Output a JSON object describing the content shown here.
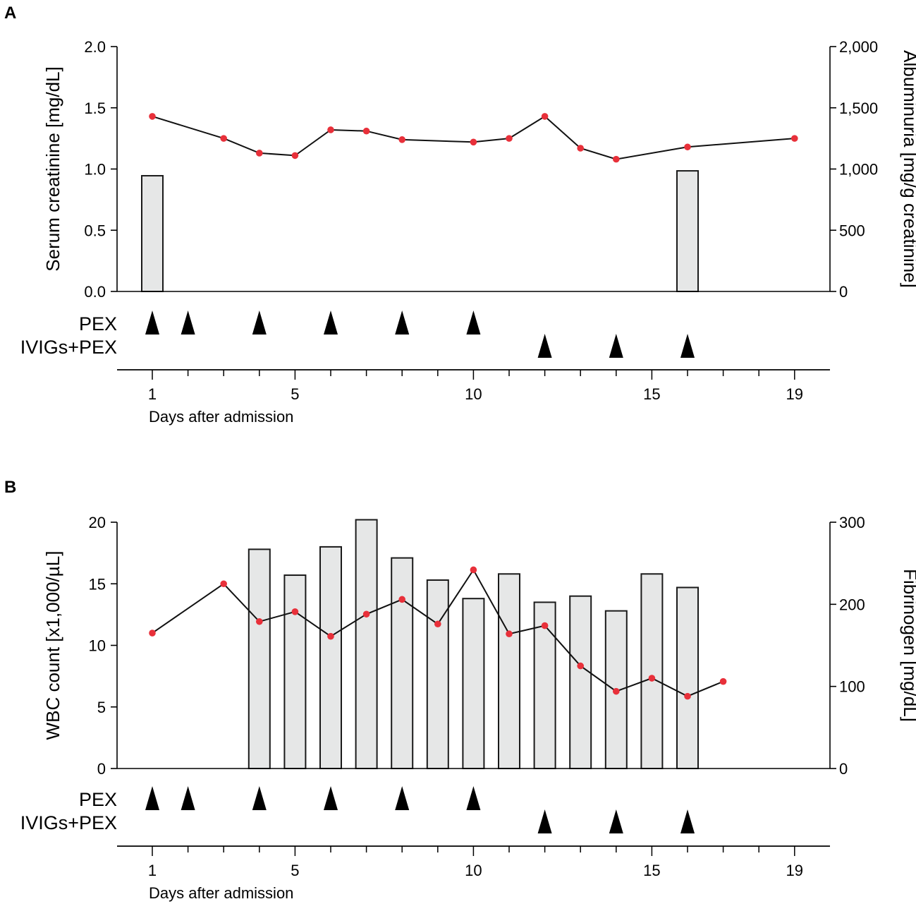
{
  "chart_data": [
    {
      "panel_label": "A",
      "type": "bar+line",
      "xlabel": "Days after admission",
      "x_ticks": [
        "1",
        "5",
        "10",
        "15",
        "19"
      ],
      "x_range": [
        1,
        19
      ],
      "left_axis": {
        "label": "Serum creatinine [mg/dL]",
        "range": [
          0,
          2.0
        ],
        "ticks": [
          "0.0",
          "0.5",
          "1.0",
          "1.5",
          "2.0"
        ],
        "tick_values": [
          0,
          0.5,
          1.0,
          1.5,
          2.0
        ]
      },
      "right_axis": {
        "label": "Albuminuria [mg/g creatinine]",
        "range": [
          0,
          2000
        ],
        "ticks": [
          "0",
          "500",
          "1,000",
          "1,500",
          "2,000"
        ],
        "tick_values": [
          0,
          500,
          1000,
          1500,
          2000
        ]
      },
      "bars": {
        "axis": "right",
        "name": "Albuminuria",
        "x": [
          1,
          16
        ],
        "values": [
          945,
          985
        ]
      },
      "line": {
        "axis": "left",
        "name": "Serum creatinine",
        "color": "#e8303a",
        "x": [
          1,
          3,
          4,
          5,
          6,
          7,
          8,
          10,
          11,
          12,
          13,
          14,
          16,
          19
        ],
        "values": [
          1.43,
          1.25,
          1.13,
          1.11,
          1.32,
          1.31,
          1.24,
          1.22,
          1.25,
          1.43,
          1.17,
          1.08,
          1.18,
          1.25
        ]
      },
      "treatments": [
        {
          "label": "PEX",
          "days": [
            1,
            2,
            4,
            6,
            8,
            10
          ]
        },
        {
          "label": "IVIGs+PEX",
          "days": [
            12,
            14,
            16
          ]
        }
      ]
    },
    {
      "panel_label": "B",
      "type": "bar+line",
      "xlabel": "Days after admission",
      "x_ticks": [
        "1",
        "5",
        "10",
        "15",
        "19"
      ],
      "x_range": [
        1,
        19
      ],
      "left_axis": {
        "label": "WBC count [x1,000/µL]",
        "range": [
          0,
          20
        ],
        "ticks": [
          "0",
          "5",
          "10",
          "15",
          "20"
        ],
        "tick_values": [
          0,
          5,
          10,
          15,
          20
        ]
      },
      "right_axis": {
        "label": "Fibrinogen [mg/dL]",
        "range": [
          0,
          300
        ],
        "ticks": [
          "0",
          "100",
          "200",
          "300"
        ],
        "tick_values": [
          0,
          100,
          200,
          300
        ]
      },
      "bars": {
        "axis": "left",
        "name": "WBC count",
        "x": [
          4,
          5,
          6,
          7,
          8,
          9,
          10,
          11,
          12,
          13,
          14,
          15,
          16
        ],
        "values": [
          17.8,
          15.7,
          18.0,
          20.2,
          17.1,
          15.3,
          13.8,
          15.8,
          13.5,
          14.0,
          12.8,
          15.8,
          14.7
        ]
      },
      "line": {
        "axis": "right",
        "name": "Fibrinogen",
        "color": "#e8303a",
        "x": [
          1,
          3,
          4,
          5,
          6,
          7,
          8,
          9,
          10,
          11,
          12,
          13,
          14,
          15,
          16,
          17
        ],
        "values": [
          165,
          225,
          179,
          191,
          161,
          188,
          206,
          176,
          242,
          164,
          174,
          125,
          94,
          110,
          88,
          106
        ]
      },
      "treatments": [
        {
          "label": "PEX",
          "days": [
            1,
            2,
            4,
            6,
            8,
            10
          ]
        },
        {
          "label": "IVIGs+PEX",
          "days": [
            12,
            14,
            16
          ]
        }
      ]
    }
  ]
}
